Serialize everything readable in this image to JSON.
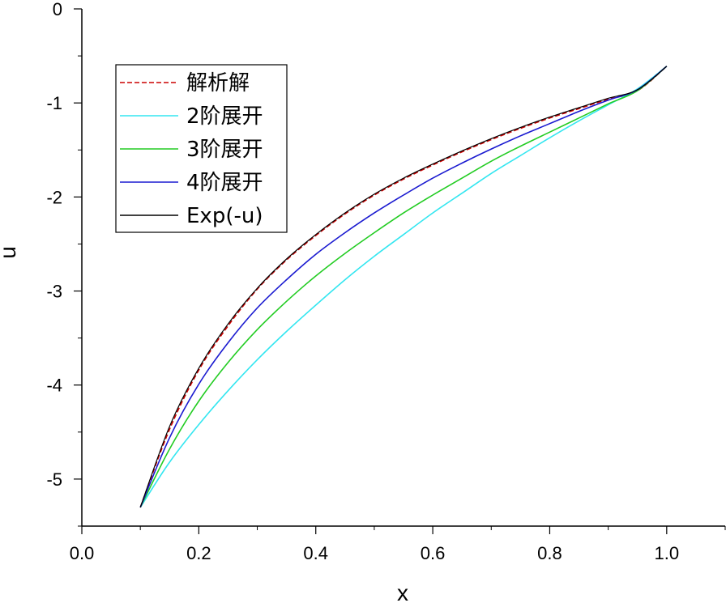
{
  "chart_data": {
    "type": "line",
    "xlabel": "x",
    "ylabel": "u",
    "xlim": [
      0.0,
      1.1
    ],
    "ylim": [
      -5.5,
      0
    ],
    "x_ticks": [
      "0.0",
      "0.2",
      "0.4",
      "0.6",
      "0.8",
      "1.0"
    ],
    "y_ticks": [
      "0",
      "-1",
      "-2",
      "-3",
      "-4",
      "-5"
    ],
    "legend_position": "top-left",
    "series": [
      {
        "name": "解析解",
        "color": "#cc0000",
        "dash": true,
        "x": [
          0.1,
          0.15,
          0.2,
          0.25,
          0.3,
          0.35,
          0.4,
          0.45,
          0.5,
          0.55,
          0.6,
          0.65,
          0.7,
          0.75,
          0.8,
          0.85,
          0.9,
          0.95,
          1.0
        ],
        "y": [
          -5.3,
          -4.47,
          -3.84,
          -3.37,
          -2.98,
          -2.67,
          -2.41,
          -2.18,
          -1.98,
          -1.81,
          -1.66,
          -1.52,
          -1.39,
          -1.27,
          -1.16,
          -1.06,
          -0.96,
          -0.87,
          -0.61
        ]
      },
      {
        "name": "2阶展开",
        "color": "#33e6f0",
        "dash": false,
        "x": [
          0.1,
          0.15,
          0.2,
          0.25,
          0.3,
          0.35,
          0.4,
          0.45,
          0.5,
          0.55,
          0.6,
          0.65,
          0.7,
          0.75,
          0.8,
          0.85,
          0.9,
          0.95,
          1.0
        ],
        "y": [
          -5.3,
          -4.82,
          -4.42,
          -4.06,
          -3.73,
          -3.43,
          -3.15,
          -2.88,
          -2.63,
          -2.4,
          -2.17,
          -1.96,
          -1.75,
          -1.56,
          -1.37,
          -1.19,
          -1.02,
          -0.85,
          -0.61
        ]
      },
      {
        "name": "3阶展开",
        "color": "#22cc22",
        "dash": false,
        "x": [
          0.1,
          0.15,
          0.2,
          0.25,
          0.3,
          0.35,
          0.4,
          0.45,
          0.5,
          0.55,
          0.6,
          0.65,
          0.7,
          0.75,
          0.8,
          0.85,
          0.9,
          0.95,
          1.0
        ],
        "y": [
          -5.3,
          -4.68,
          -4.17,
          -3.76,
          -3.41,
          -3.11,
          -2.84,
          -2.6,
          -2.38,
          -2.17,
          -1.98,
          -1.8,
          -1.62,
          -1.46,
          -1.31,
          -1.16,
          -1.01,
          -0.87,
          -0.61
        ]
      },
      {
        "name": "4阶展开",
        "color": "#1a1ad0",
        "dash": false,
        "x": [
          0.1,
          0.15,
          0.2,
          0.25,
          0.3,
          0.35,
          0.4,
          0.45,
          0.5,
          0.55,
          0.6,
          0.65,
          0.7,
          0.75,
          0.8,
          0.85,
          0.9,
          0.95,
          1.0
        ],
        "y": [
          -5.3,
          -4.56,
          -3.99,
          -3.55,
          -3.18,
          -2.88,
          -2.61,
          -2.38,
          -2.17,
          -1.98,
          -1.8,
          -1.64,
          -1.49,
          -1.35,
          -1.22,
          -1.09,
          -0.97,
          -0.86,
          -0.61
        ]
      },
      {
        "name": "Exp(-u)",
        "color": "#000000",
        "dash": false,
        "x": [
          0.1,
          0.15,
          0.2,
          0.25,
          0.3,
          0.35,
          0.4,
          0.45,
          0.5,
          0.55,
          0.6,
          0.65,
          0.7,
          0.75,
          0.8,
          0.85,
          0.9,
          0.95,
          1.0
        ],
        "y": [
          -5.3,
          -4.44,
          -3.82,
          -3.35,
          -2.97,
          -2.66,
          -2.4,
          -2.17,
          -1.97,
          -1.8,
          -1.65,
          -1.51,
          -1.38,
          -1.26,
          -1.15,
          -1.05,
          -0.95,
          -0.86,
          -0.61
        ]
      }
    ]
  }
}
